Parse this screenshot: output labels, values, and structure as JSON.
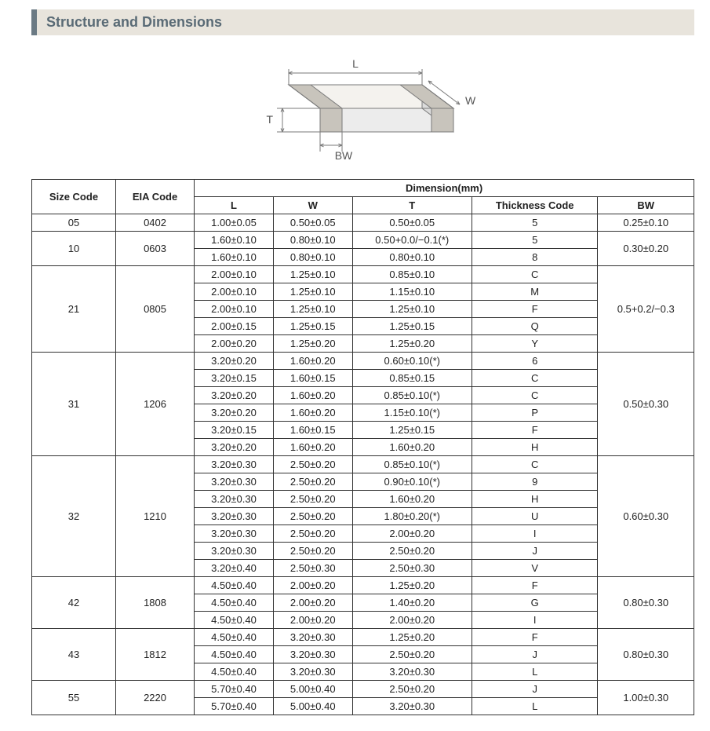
{
  "section_title": "Structure and Dimensions",
  "diagram": {
    "labels": {
      "L": "L",
      "W": "W",
      "T": "T",
      "BW": "BW"
    },
    "stroke": "#7a7a7a",
    "fill_top": "#f4f2ee",
    "fill_front": "#ececec",
    "fill_side": "#dcdcdc",
    "band_fill": "#c8c4bc",
    "label_color": "#555555",
    "label_fontsize": 14
  },
  "table": {
    "header_group": "Dimension(mm)",
    "columns": {
      "size_code": "Size Code",
      "eia_code": "EIA Code",
      "L": "L",
      "W": "W",
      "T": "T",
      "thickness_code": "Thickness Code",
      "BW": "BW"
    },
    "groups": [
      {
        "size_code": "05",
        "eia_code": "0402",
        "bw": "0.25±0.10",
        "rows": [
          {
            "L": "1.00±0.05",
            "W": "0.50±0.05",
            "T": "0.50±0.05",
            "tc": "5"
          }
        ]
      },
      {
        "size_code": "10",
        "eia_code": "0603",
        "bw": "0.30±0.20",
        "rows": [
          {
            "L": "1.60±0.10",
            "W": "0.80±0.10",
            "T": "0.50+0.0/−0.1(*)",
            "tc": "5"
          },
          {
            "L": "1.60±0.10",
            "W": "0.80±0.10",
            "T": "0.80±0.10",
            "tc": "8"
          }
        ]
      },
      {
        "size_code": "21",
        "eia_code": "0805",
        "bw": "0.5+0.2/−0.3",
        "rows": [
          {
            "L": "2.00±0.10",
            "W": "1.25±0.10",
            "T": "0.85±0.10",
            "tc": "C"
          },
          {
            "L": "2.00±0.10",
            "W": "1.25±0.10",
            "T": "1.15±0.10",
            "tc": "M"
          },
          {
            "L": "2.00±0.10",
            "W": "1.25±0.10",
            "T": "1.25±0.10",
            "tc": "F"
          },
          {
            "L": "2.00±0.15",
            "W": "1.25±0.15",
            "T": "1.25±0.15",
            "tc": "Q"
          },
          {
            "L": "2.00±0.20",
            "W": "1.25±0.20",
            "T": "1.25±0.20",
            "tc": "Y"
          }
        ]
      },
      {
        "size_code": "31",
        "eia_code": "1206",
        "bw": "0.50±0.30",
        "rows": [
          {
            "L": "3.20±0.20",
            "W": "1.60±0.20",
            "T": "0.60±0.10(*)",
            "tc": "6"
          },
          {
            "L": "3.20±0.15",
            "W": "1.60±0.15",
            "T": "0.85±0.15",
            "tc": "C"
          },
          {
            "L": "3.20±0.20",
            "W": "1.60±0.20",
            "T": "0.85±0.10(*)",
            "tc": "C"
          },
          {
            "L": "3.20±0.20",
            "W": "1.60±0.20",
            "T": "1.15±0.10(*)",
            "tc": "P"
          },
          {
            "L": "3.20±0.15",
            "W": "1.60±0.15",
            "T": "1.25±0.15",
            "tc": "F"
          },
          {
            "L": "3.20±0.20",
            "W": "1.60±0.20",
            "T": "1.60±0.20",
            "tc": "H"
          }
        ]
      },
      {
        "size_code": "32",
        "eia_code": "1210",
        "bw": "0.60±0.30",
        "rows": [
          {
            "L": "3.20±0.30",
            "W": "2.50±0.20",
            "T": "0.85±0.10(*)",
            "tc": "C"
          },
          {
            "L": "3.20±0.30",
            "W": "2.50±0.20",
            "T": "0.90±0.10(*)",
            "tc": "9"
          },
          {
            "L": "3.20±0.30",
            "W": "2.50±0.20",
            "T": "1.60±0.20",
            "tc": "H"
          },
          {
            "L": "3.20±0.30",
            "W": "2.50±0.20",
            "T": "1.80±0.20(*)",
            "tc": "U"
          },
          {
            "L": "3.20±0.30",
            "W": "2.50±0.20",
            "T": "2.00±0.20",
            "tc": "I"
          },
          {
            "L": "3.20±0.30",
            "W": "2.50±0.20",
            "T": "2.50±0.20",
            "tc": "J"
          },
          {
            "L": "3.20±0.40",
            "W": "2.50±0.30",
            "T": "2.50±0.30",
            "tc": "V"
          }
        ]
      },
      {
        "size_code": "42",
        "eia_code": "1808",
        "bw": "0.80±0.30",
        "rows": [
          {
            "L": "4.50±0.40",
            "W": "2.00±0.20",
            "T": "1.25±0.20",
            "tc": "F"
          },
          {
            "L": "4.50±0.40",
            "W": "2.00±0.20",
            "T": "1.40±0.20",
            "tc": "G"
          },
          {
            "L": "4.50±0.40",
            "W": "2.00±0.20",
            "T": "2.00±0.20",
            "tc": "I"
          }
        ]
      },
      {
        "size_code": "43",
        "eia_code": "1812",
        "bw": "0.80±0.30",
        "rows": [
          {
            "L": "4.50±0.40",
            "W": "3.20±0.30",
            "T": "1.25±0.20",
            "tc": "F"
          },
          {
            "L": "4.50±0.40",
            "W": "3.20±0.30",
            "T": "2.50±0.20",
            "tc": "J"
          },
          {
            "L": "4.50±0.40",
            "W": "3.20±0.30",
            "T": "3.20±0.30",
            "tc": "L"
          }
        ]
      },
      {
        "size_code": "55",
        "eia_code": "2220",
        "bw": "1.00±0.30",
        "rows": [
          {
            "L": "5.70±0.40",
            "W": "5.00±0.40",
            "T": "2.50±0.20",
            "tc": "J"
          },
          {
            "L": "5.70±0.40",
            "W": "5.00±0.40",
            "T": "3.20±0.30",
            "tc": "L"
          }
        ]
      }
    ]
  }
}
